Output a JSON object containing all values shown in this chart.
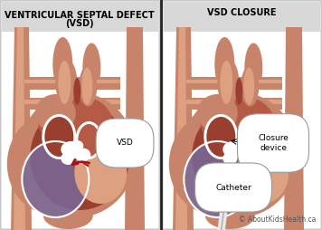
{
  "bg_color": "#d8d8d8",
  "white_bg": "#ffffff",
  "title1_line1": "VENTRICULAR SEPTAL DEFECT",
  "title1_line2": "(VSD)",
  "title2": "VSD CLOSURE",
  "title_fontsize": 7.0,
  "title_fontweight": "bold",
  "label_vsd": "VSD",
  "label_closure": "Closure\ndevice",
  "label_catheter": "Catheter",
  "copyright": "© AboutKidsHealth.ca",
  "heart_base": "#c8846a",
  "heart_dark": "#9a3f30",
  "heart_mid": "#b55a45",
  "heart_light": "#dda080",
  "heart_pale": "#e8b898",
  "ventricle_purple": "#7a6898",
  "ventricle_light": "#c8a0b8",
  "white": "#ffffff",
  "arrow_red": "#aa1010",
  "device_gray": "#909090",
  "device_light": "#c0c0c0",
  "catheter_white": "#e8e8e8",
  "label_box": "#ffffff",
  "label_border": "#999999",
  "label_fontsize": 6.5,
  "copy_fontsize": 5.5,
  "divider_color": "#222222",
  "header_bg": "#d8d8d8"
}
